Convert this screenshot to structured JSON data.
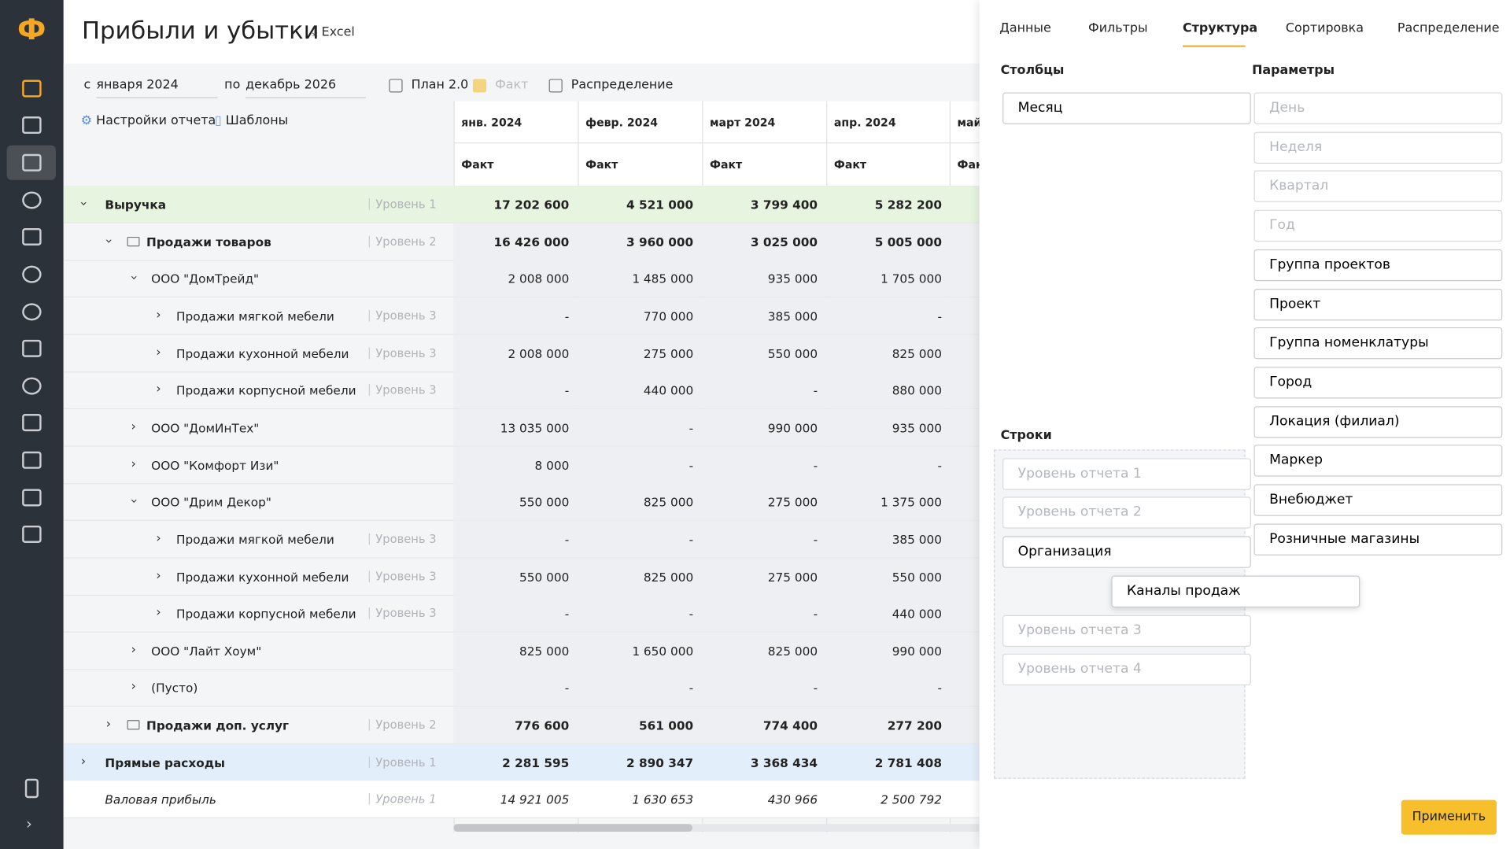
{
  "header": {
    "title": "Прибыли и убытки",
    "excel": "Excel"
  },
  "filters": {
    "from_label": "с",
    "from": "января 2024",
    "to_label": "по",
    "to": "декабрь 2026",
    "plan": "План 2.0",
    "fact": "Факт",
    "distribution": "Распределение"
  },
  "toolbar": {
    "settings": "Настройки отчета",
    "templates": "Шаблоны"
  },
  "table": {
    "columns": [
      "янв. 2024",
      "февр. 2024",
      "март 2024",
      "апр. 2024",
      "май"
    ],
    "subheader": [
      "Факт",
      "Факт",
      "Факт",
      "Факт",
      "Фак"
    ],
    "rows": [
      {
        "label": "Выручка",
        "level": "Уровень 1",
        "values": [
          "17 202 600",
          "4 521 000",
          "3 799 400",
          "5 282 200"
        ]
      },
      {
        "label": "Продажи товаров",
        "level": "Уровень 2",
        "values": [
          "16 426 000",
          "3 960 000",
          "3 025 000",
          "5 005 000"
        ]
      },
      {
        "label": "ООО \"ДомТрейд\"",
        "values": [
          "2 008 000",
          "1 485 000",
          "935 000",
          "1 705 000"
        ]
      },
      {
        "label": "Продажи мягкой мебели",
        "level": "Уровень 3",
        "values": [
          "-",
          "770 000",
          "385 000",
          "-"
        ]
      },
      {
        "label": "Продажи кухонной мебели",
        "level": "Уровень 3",
        "values": [
          "2 008 000",
          "275 000",
          "550 000",
          "825 000"
        ]
      },
      {
        "label": "Продажи корпусной мебели",
        "level": "Уровень 3",
        "values": [
          "-",
          "440 000",
          "-",
          "880 000"
        ]
      },
      {
        "label": "ООО \"ДомИнТех\"",
        "values": [
          "13 035 000",
          "-",
          "990 000",
          "935 000"
        ]
      },
      {
        "label": "ООО \"Комфорт Изи\"",
        "values": [
          "8 000",
          "-",
          "-",
          "-"
        ]
      },
      {
        "label": "ООО \"Дрим Декор\"",
        "values": [
          "550 000",
          "825 000",
          "275 000",
          "1 375 000"
        ]
      },
      {
        "label": "Продажи мягкой мебели",
        "level": "Уровень 3",
        "values": [
          "-",
          "-",
          "-",
          "385 000"
        ]
      },
      {
        "label": "Продажи кухонной мебели",
        "level": "Уровень 3",
        "values": [
          "550 000",
          "825 000",
          "275 000",
          "550 000"
        ]
      },
      {
        "label": "Продажи корпусной мебели",
        "level": "Уровень 3",
        "values": [
          "-",
          "-",
          "-",
          "440 000"
        ]
      },
      {
        "label": "ООО \"Лайт Хоум\"",
        "values": [
          "825 000",
          "1 650 000",
          "825 000",
          "990 000"
        ]
      },
      {
        "label": "(Пусто)",
        "values": [
          "-",
          "-",
          "-",
          "-"
        ]
      },
      {
        "label": "Продажи доп. услуг",
        "level": "Уровень 2",
        "values": [
          "776 600",
          "561 000",
          "774 400",
          "277 200"
        ]
      },
      {
        "label": "Прямые расходы",
        "level": "Уровень 1",
        "values": [
          "2 281 595",
          "2 890 347",
          "3 368 434",
          "2 781 408"
        ]
      },
      {
        "label": "Валовая прибыль",
        "level": "Уровень 1",
        "values": [
          "14 921 005",
          "1 630 653",
          "430 966",
          "2 500 792"
        ]
      }
    ]
  },
  "panel": {
    "tabs": [
      "Данные",
      "Фильтры",
      "Структура",
      "Сортировка",
      "Распределение"
    ],
    "columns_title": "Столбцы",
    "columns": [
      "Месяц"
    ],
    "rows_title": "Строки",
    "rows": [
      "Уровень отчета 1",
      "Уровень отчета 2",
      "Организация",
      "Уровень отчета 3",
      "Уровень отчета 4"
    ],
    "dragging": "Каналы продаж",
    "params_title": "Параметры",
    "params": [
      "День",
      "Неделя",
      "Квартал",
      "Год",
      "Группа проектов",
      "Проект",
      "Группа номенклатуры",
      "Город",
      "Локация (филиал)",
      "Маркер",
      "Внебюджет",
      "Розничные магазины"
    ],
    "apply": "Применить"
  }
}
